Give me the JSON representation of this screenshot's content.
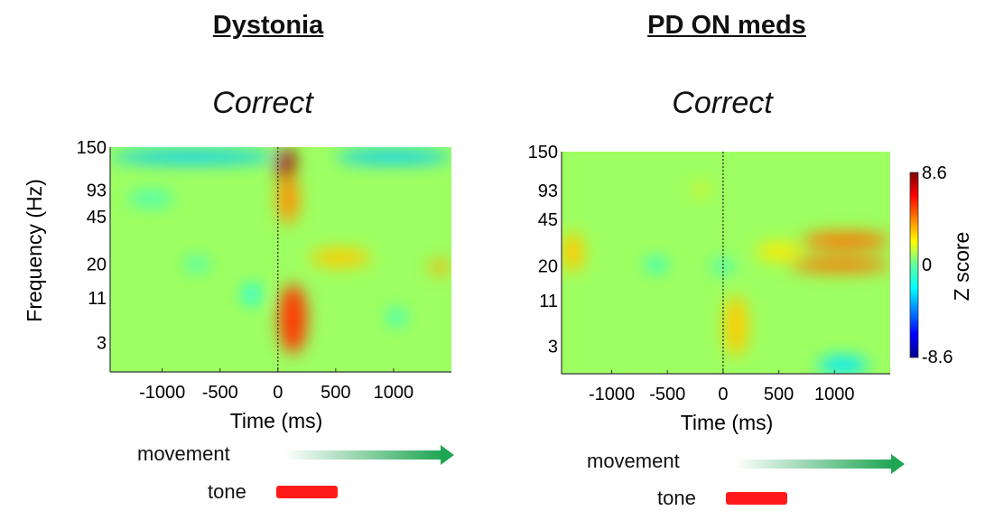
{
  "chart_data": [
    {
      "type": "heatmap",
      "group_title": "Dystonia",
      "title": "Correct",
      "xlabel": "Time (ms)",
      "ylabel": "Frequency (Hz)",
      "xlim": [
        -1450,
        1500
      ],
      "xticks": [
        -1000,
        -500,
        0,
        500,
        1000
      ],
      "yticks": [
        150,
        93,
        45,
        20,
        11,
        3
      ],
      "event_line_at": 0,
      "background_z": 0.5,
      "regions": [
        {
          "t": [
            -1450,
            0
          ],
          "f": [
            125,
            145
          ],
          "z": -3
        },
        {
          "t": [
            500,
            1500
          ],
          "f": [
            125,
            145
          ],
          "z": -3
        },
        {
          "t": [
            -10,
            150
          ],
          "f": [
            100,
            150
          ],
          "z": 8
        },
        {
          "t": [
            0,
            180
          ],
          "f": [
            40,
            110
          ],
          "z": 4
        },
        {
          "t": [
            10,
            250
          ],
          "f": [
            2,
            14
          ],
          "z": 5.5
        },
        {
          "t": [
            280,
            800
          ],
          "f": [
            19,
            26
          ],
          "z": 3
        },
        {
          "t": [
            1300,
            1500
          ],
          "f": [
            17,
            21
          ],
          "z": 3.5
        },
        {
          "t": [
            -300,
            -150
          ],
          "f": [
            9,
            14
          ],
          "z": -2
        },
        {
          "t": [
            -800,
            -600
          ],
          "f": [
            18,
            22
          ],
          "z": -1.5
        },
        {
          "t": [
            950,
            1100
          ],
          "f": [
            5,
            8
          ],
          "z": -1.5
        },
        {
          "t": [
            -1300,
            -900
          ],
          "f": [
            60,
            90
          ],
          "z": -1
        }
      ],
      "colorbar": null
    },
    {
      "type": "heatmap",
      "group_title": "PD ON meds",
      "title": "Correct",
      "xlabel": "Time (ms)",
      "ylabel": "",
      "xlim": [
        -1450,
        1500
      ],
      "xticks": [
        -1000,
        -500,
        0,
        500,
        1000
      ],
      "yticks": [
        150,
        93,
        45,
        20,
        11,
        3
      ],
      "event_line_at": 0,
      "background_z": 0.5,
      "regions": [
        {
          "t": [
            700,
            1500
          ],
          "f": [
            27,
            36
          ],
          "z": 4.5
        },
        {
          "t": [
            600,
            1500
          ],
          "f": [
            18,
            23
          ],
          "z": 4.5
        },
        {
          "t": [
            300,
            700
          ],
          "f": [
            22,
            30
          ],
          "z": 2.5
        },
        {
          "t": [
            -1450,
            -1250
          ],
          "f": [
            18,
            36
          ],
          "z": 3
        },
        {
          "t": [
            10,
            220
          ],
          "f": [
            2,
            12
          ],
          "z": 3
        },
        {
          "t": [
            850,
            1300
          ],
          "f": [
            1,
            2
          ],
          "z": -2.5
        },
        {
          "t": [
            -700,
            -500
          ],
          "f": [
            19,
            22
          ],
          "z": -2
        },
        {
          "t": [
            -100,
            100
          ],
          "f": [
            18,
            22
          ],
          "z": -1.5
        },
        {
          "t": [
            -250,
            -150
          ],
          "f": [
            88,
            98
          ],
          "z": 2.5
        }
      ],
      "colorbar": {
        "label": "Z score",
        "min": -8.6,
        "max": 8.6,
        "ticks": [
          "8.6",
          "0",
          "-8.6"
        ],
        "colormap": "jet"
      }
    }
  ],
  "legend": {
    "dystonia": {
      "movement": "movement",
      "tone": "tone"
    },
    "pd": {
      "movement": "movement",
      "tone": "tone"
    }
  },
  "colors": {
    "movement_arrow": "#1fa653",
    "tone_bar": "#ff1a1a"
  }
}
